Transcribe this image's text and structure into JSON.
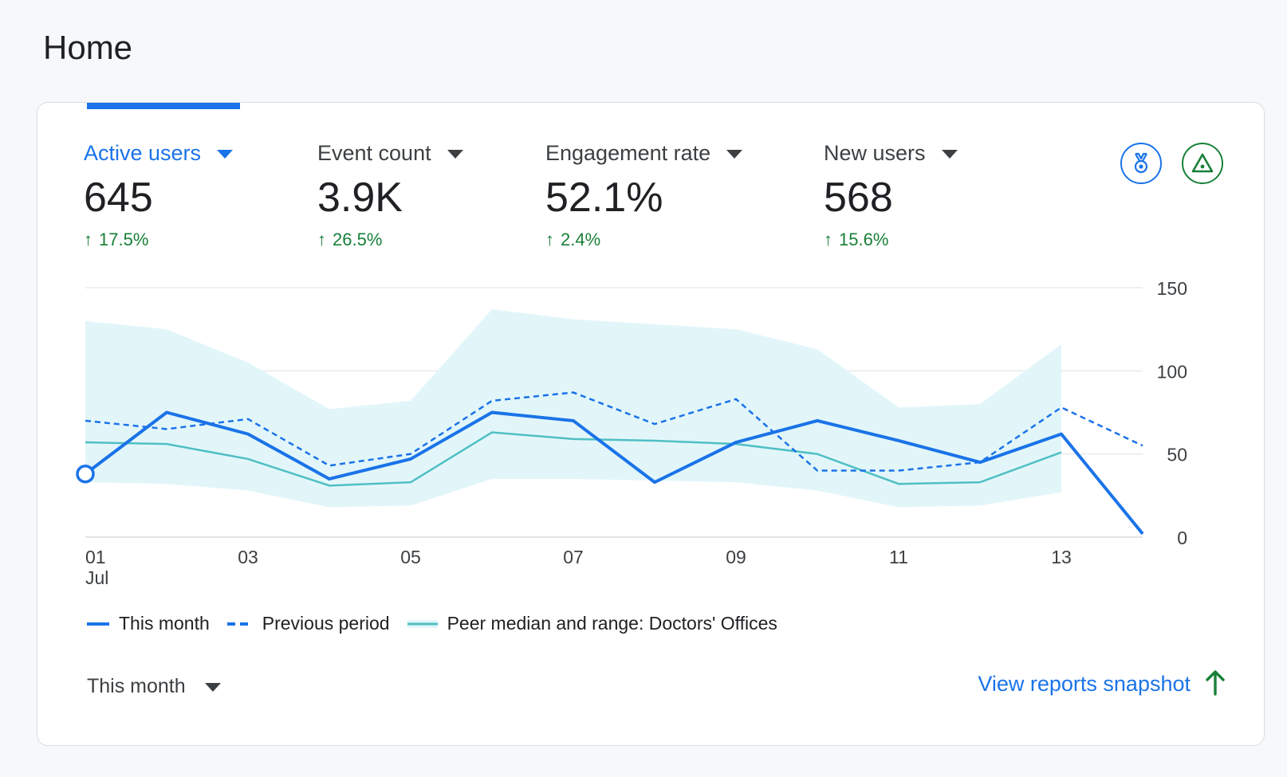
{
  "page": {
    "title": "Home"
  },
  "metrics": [
    {
      "label": "Active users",
      "value": "645",
      "change": "17.5%",
      "active": true
    },
    {
      "label": "Event count",
      "value": "3.9K",
      "change": "26.5%",
      "active": false
    },
    {
      "label": "Engagement rate",
      "value": "52.1%",
      "change": "2.4%",
      "active": false
    },
    {
      "label": "New users",
      "value": "568",
      "change": "15.6%",
      "active": false
    }
  ],
  "icons": {
    "badge": "medal-icon",
    "insight": "triangle-alert-icon",
    "view_arrow": "arrow-up-icon"
  },
  "colors": {
    "accent": "#1a73e8",
    "positive": "#188038",
    "peer_line": "#4fbfc4",
    "peer_band": "#e2f6fa"
  },
  "chart_data": {
    "type": "line",
    "x": [
      "01",
      "02",
      "03",
      "04",
      "05",
      "06",
      "07",
      "08",
      "09",
      "10",
      "11",
      "12",
      "13",
      "14"
    ],
    "x_tick_labels": [
      "01",
      "03",
      "05",
      "07",
      "09",
      "11",
      "13"
    ],
    "x_tick_sublabel": "Jul",
    "y_ticks": [
      "0",
      "50",
      "100",
      "150"
    ],
    "ylim": [
      0,
      150
    ],
    "grid": true,
    "series": [
      {
        "name": "This month",
        "style": "solid",
        "values": [
          38,
          75,
          62,
          35,
          47,
          75,
          70,
          33,
          57,
          70,
          58,
          45,
          62,
          2
        ]
      },
      {
        "name": "Previous period",
        "style": "dashed",
        "values": [
          70,
          65,
          71,
          43,
          50,
          82,
          87,
          68,
          83,
          40,
          40,
          45,
          78,
          55
        ]
      },
      {
        "name": "Peer median and range: Doctors' Offices",
        "style": "band",
        "median": [
          57,
          56,
          47,
          31,
          33,
          63,
          59,
          58,
          56,
          50,
          32,
          33,
          51
        ],
        "low": [
          33,
          32,
          28,
          18,
          19,
          35,
          35,
          34,
          33,
          28,
          18,
          19,
          27
        ],
        "high": [
          130,
          125,
          105,
          77,
          82,
          137,
          131,
          128,
          125,
          113,
          78,
          80,
          116
        ]
      }
    ]
  },
  "period_selector": {
    "label": "This month"
  },
  "footer": {
    "link_label": "View reports snapshot"
  }
}
